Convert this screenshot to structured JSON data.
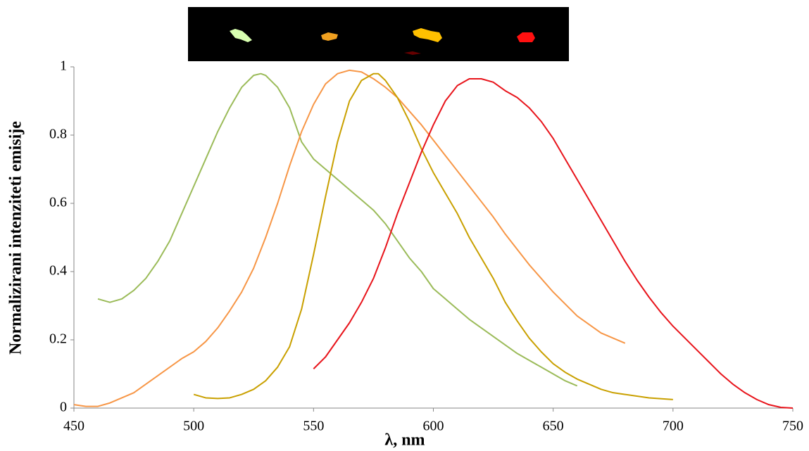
{
  "chart_data": {
    "type": "line",
    "xlabel": "λ, nm",
    "ylabel": "Normalizirani intenziteti emisije",
    "xlim": [
      450,
      750
    ],
    "xticks": [
      450,
      500,
      550,
      600,
      650,
      700,
      750
    ],
    "ylim": [
      0,
      1
    ],
    "yticks": [
      0,
      0.2,
      0.4,
      0.6,
      0.8,
      1
    ],
    "series": [
      {
        "color": "#9bbb59",
        "x": [
          460,
          465,
          470,
          475,
          480,
          485,
          490,
          495,
          500,
          505,
          510,
          515,
          520,
          525,
          528,
          530,
          535,
          540,
          545,
          550,
          555,
          560,
          565,
          570,
          575,
          580,
          585,
          590,
          595,
          600,
          605,
          610,
          615,
          620,
          625,
          630,
          635,
          640,
          645,
          650,
          655,
          660
        ],
        "values": [
          0.32,
          0.31,
          0.32,
          0.345,
          0.38,
          0.43,
          0.49,
          0.57,
          0.65,
          0.73,
          0.81,
          0.88,
          0.94,
          0.975,
          0.98,
          0.975,
          0.94,
          0.88,
          0.78,
          0.73,
          0.7,
          0.67,
          0.64,
          0.61,
          0.58,
          0.54,
          0.49,
          0.44,
          0.4,
          0.35,
          0.32,
          0.29,
          0.26,
          0.235,
          0.21,
          0.185,
          0.16,
          0.14,
          0.12,
          0.1,
          0.08,
          0.065
        ]
      },
      {
        "color": "#f79646",
        "x": [
          450,
          455,
          460,
          465,
          470,
          475,
          480,
          485,
          490,
          495,
          500,
          505,
          510,
          515,
          520,
          525,
          530,
          535,
          540,
          545,
          550,
          555,
          560,
          565,
          570,
          575,
          580,
          585,
          590,
          595,
          600,
          605,
          610,
          615,
          620,
          625,
          630,
          635,
          640,
          645,
          650,
          655,
          660,
          665,
          670,
          675,
          680
        ],
        "values": [
          0.01,
          0.005,
          0.005,
          0.015,
          0.03,
          0.045,
          0.07,
          0.095,
          0.12,
          0.145,
          0.165,
          0.195,
          0.235,
          0.285,
          0.34,
          0.41,
          0.5,
          0.6,
          0.71,
          0.81,
          0.89,
          0.95,
          0.98,
          0.99,
          0.985,
          0.965,
          0.94,
          0.91,
          0.87,
          0.83,
          0.785,
          0.74,
          0.695,
          0.65,
          0.605,
          0.56,
          0.51,
          0.465,
          0.42,
          0.38,
          0.34,
          0.305,
          0.27,
          0.245,
          0.22,
          0.205,
          0.19
        ]
      },
      {
        "color": "#c9a000",
        "x": [
          500,
          505,
          510,
          515,
          520,
          525,
          530,
          535,
          540,
          545,
          550,
          555,
          560,
          565,
          570,
          575,
          577,
          580,
          585,
          590,
          595,
          600,
          605,
          610,
          615,
          620,
          625,
          630,
          635,
          640,
          645,
          650,
          655,
          660,
          665,
          670,
          675,
          680,
          690,
          700
        ],
        "values": [
          0.04,
          0.03,
          0.028,
          0.03,
          0.04,
          0.055,
          0.08,
          0.12,
          0.18,
          0.29,
          0.45,
          0.62,
          0.78,
          0.9,
          0.96,
          0.98,
          0.98,
          0.96,
          0.91,
          0.84,
          0.76,
          0.69,
          0.63,
          0.57,
          0.5,
          0.44,
          0.38,
          0.31,
          0.255,
          0.205,
          0.165,
          0.13,
          0.105,
          0.085,
          0.07,
          0.055,
          0.045,
          0.04,
          0.03,
          0.025
        ]
      },
      {
        "color": "#e8141b",
        "x": [
          550,
          555,
          560,
          565,
          570,
          575,
          580,
          585,
          590,
          595,
          600,
          605,
          610,
          615,
          620,
          625,
          630,
          635,
          640,
          645,
          650,
          655,
          660,
          665,
          670,
          675,
          680,
          685,
          690,
          695,
          700,
          705,
          710,
          715,
          720,
          725,
          730,
          735,
          740,
          745,
          750
        ],
        "values": [
          0.115,
          0.15,
          0.2,
          0.25,
          0.31,
          0.38,
          0.47,
          0.57,
          0.66,
          0.75,
          0.83,
          0.9,
          0.945,
          0.965,
          0.965,
          0.955,
          0.93,
          0.91,
          0.88,
          0.84,
          0.79,
          0.73,
          0.67,
          0.61,
          0.55,
          0.49,
          0.43,
          0.375,
          0.325,
          0.28,
          0.24,
          0.205,
          0.17,
          0.135,
          0.1,
          0.07,
          0.045,
          0.025,
          0.01,
          0.002,
          0
        ]
      }
    ]
  }
}
